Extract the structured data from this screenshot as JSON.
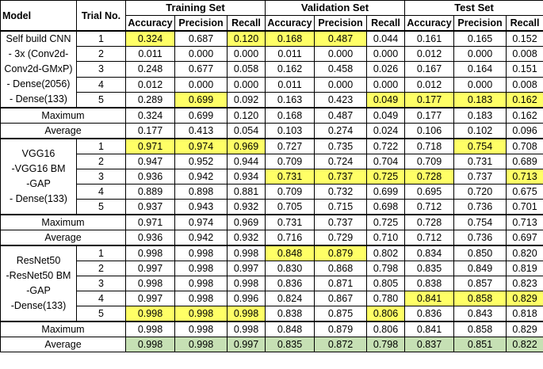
{
  "colors": {
    "yellow": "#ffff66",
    "green": "#c6e0b4"
  },
  "header": {
    "model": "Model",
    "trial": "Trial No.",
    "groups": [
      "Training Set",
      "Validation Set",
      "Test Set"
    ],
    "metrics": [
      "Accuracy",
      "Precision",
      "Recall"
    ]
  },
  "stat_labels": {
    "max": "Maximum",
    "avg": "Average"
  },
  "models": [
    {
      "lines": [
        "Self build CNN",
        "- 3x (Conv2d-",
        "Conv2d-GMxP)",
        "- Dense(2056)",
        "- Dense(133)"
      ],
      "trials": [
        {
          "no": "1",
          "v": [
            "0.324",
            "0.687",
            "0.120",
            "0.168",
            "0.487",
            "0.044",
            "0.161",
            "0.165",
            "0.152"
          ],
          "hl": [
            0,
            2,
            3,
            4
          ]
        },
        {
          "no": "2",
          "v": [
            "0.011",
            "0.000",
            "0.000",
            "0.011",
            "0.000",
            "0.000",
            "0.012",
            "0.000",
            "0.008"
          ],
          "hl": []
        },
        {
          "no": "3",
          "v": [
            "0.248",
            "0.677",
            "0.058",
            "0.162",
            "0.458",
            "0.026",
            "0.167",
            "0.164",
            "0.151"
          ],
          "hl": []
        },
        {
          "no": "4",
          "v": [
            "0.012",
            "0.000",
            "0.000",
            "0.011",
            "0.000",
            "0.000",
            "0.012",
            "0.000",
            "0.008"
          ],
          "hl": []
        },
        {
          "no": "5",
          "v": [
            "0.289",
            "0.699",
            "0.092",
            "0.163",
            "0.423",
            "0.049",
            "0.177",
            "0.183",
            "0.162"
          ],
          "hl": [
            1,
            5,
            6,
            7,
            8
          ]
        }
      ],
      "max": {
        "v": [
          "0.324",
          "0.699",
          "0.120",
          "0.168",
          "0.487",
          "0.049",
          "0.177",
          "0.183",
          "0.162"
        ],
        "hl": []
      },
      "avg": {
        "v": [
          "0.177",
          "0.413",
          "0.054",
          "0.103",
          "0.274",
          "0.024",
          "0.106",
          "0.102",
          "0.096"
        ],
        "hl": []
      }
    },
    {
      "lines": [
        "VGG16",
        "-VGG16 BM",
        "-GAP",
        "- Dense(133)"
      ],
      "trials": [
        {
          "no": "1",
          "v": [
            "0.971",
            "0.974",
            "0.969",
            "0.727",
            "0.735",
            "0.722",
            "0.718",
            "0.754",
            "0.708"
          ],
          "hl": [
            0,
            1,
            2,
            7
          ]
        },
        {
          "no": "2",
          "v": [
            "0.947",
            "0.952",
            "0.944",
            "0.709",
            "0.724",
            "0.704",
            "0.709",
            "0.731",
            "0.689"
          ],
          "hl": []
        },
        {
          "no": "3",
          "v": [
            "0.936",
            "0.942",
            "0.934",
            "0.731",
            "0.737",
            "0.725",
            "0.728",
            "0.737",
            "0.713"
          ],
          "hl": [
            3,
            4,
            5,
            6,
            8
          ]
        },
        {
          "no": "4",
          "v": [
            "0.889",
            "0.898",
            "0.881",
            "0.709",
            "0.732",
            "0.699",
            "0.695",
            "0.720",
            "0.675"
          ],
          "hl": []
        },
        {
          "no": "5",
          "v": [
            "0.937",
            "0.943",
            "0.932",
            "0.705",
            "0.715",
            "0.698",
            "0.712",
            "0.736",
            "0.701"
          ],
          "hl": []
        }
      ],
      "max": {
        "v": [
          "0.971",
          "0.974",
          "0.969",
          "0.731",
          "0.737",
          "0.725",
          "0.728",
          "0.754",
          "0.713"
        ],
        "hl": []
      },
      "avg": {
        "v": [
          "0.936",
          "0.942",
          "0.932",
          "0.716",
          "0.729",
          "0.710",
          "0.712",
          "0.736",
          "0.697"
        ],
        "hl": []
      }
    },
    {
      "lines": [
        "ResNet50",
        "-ResNet50 BM",
        "-GAP",
        "-Dense(133)"
      ],
      "trials": [
        {
          "no": "1",
          "v": [
            "0.998",
            "0.998",
            "0.998",
            "0.848",
            "0.879",
            "0.802",
            "0.834",
            "0.850",
            "0.820"
          ],
          "hl": [
            3,
            4
          ]
        },
        {
          "no": "2",
          "v": [
            "0.997",
            "0.998",
            "0.997",
            "0.830",
            "0.868",
            "0.798",
            "0.835",
            "0.849",
            "0.819"
          ],
          "hl": []
        },
        {
          "no": "3",
          "v": [
            "0.998",
            "0.998",
            "0.998",
            "0.836",
            "0.871",
            "0.805",
            "0.838",
            "0.857",
            "0.823"
          ],
          "hl": []
        },
        {
          "no": "4",
          "v": [
            "0.997",
            "0.998",
            "0.996",
            "0.824",
            "0.867",
            "0.780",
            "0.841",
            "0.858",
            "0.829"
          ],
          "hl": [
            6,
            7,
            8
          ]
        },
        {
          "no": "5",
          "v": [
            "0.998",
            "0.998",
            "0.998",
            "0.838",
            "0.875",
            "0.806",
            "0.836",
            "0.843",
            "0.818"
          ],
          "hl": [
            0,
            1,
            2,
            5
          ]
        }
      ],
      "max": {
        "v": [
          "0.998",
          "0.998",
          "0.998",
          "0.848",
          "0.879",
          "0.806",
          "0.841",
          "0.858",
          "0.829"
        ],
        "hl": []
      },
      "avg": {
        "v": [
          "0.998",
          "0.998",
          "0.997",
          "0.835",
          "0.872",
          "0.798",
          "0.837",
          "0.851",
          "0.822"
        ],
        "hl": [
          0,
          1,
          2,
          3,
          4,
          5,
          6,
          7,
          8
        ],
        "hl_color": "green"
      }
    }
  ]
}
